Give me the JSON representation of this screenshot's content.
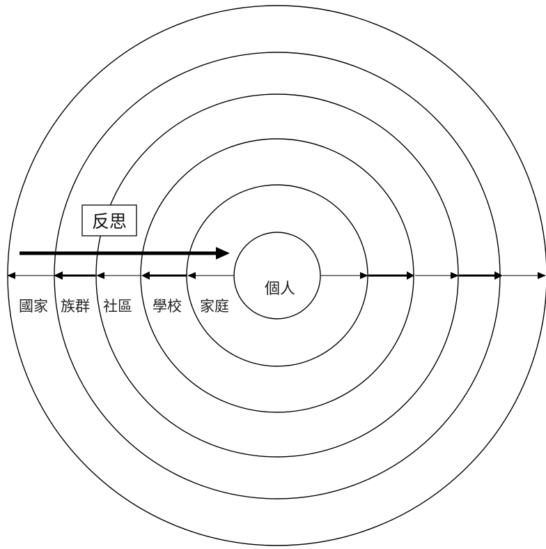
{
  "diagram": {
    "center_label": "個人",
    "reflect_label": "反思",
    "rings": [
      {
        "label": "家庭"
      },
      {
        "label": "學校"
      },
      {
        "label": "社區"
      },
      {
        "label": "族群"
      },
      {
        "label": "國家"
      }
    ]
  }
}
